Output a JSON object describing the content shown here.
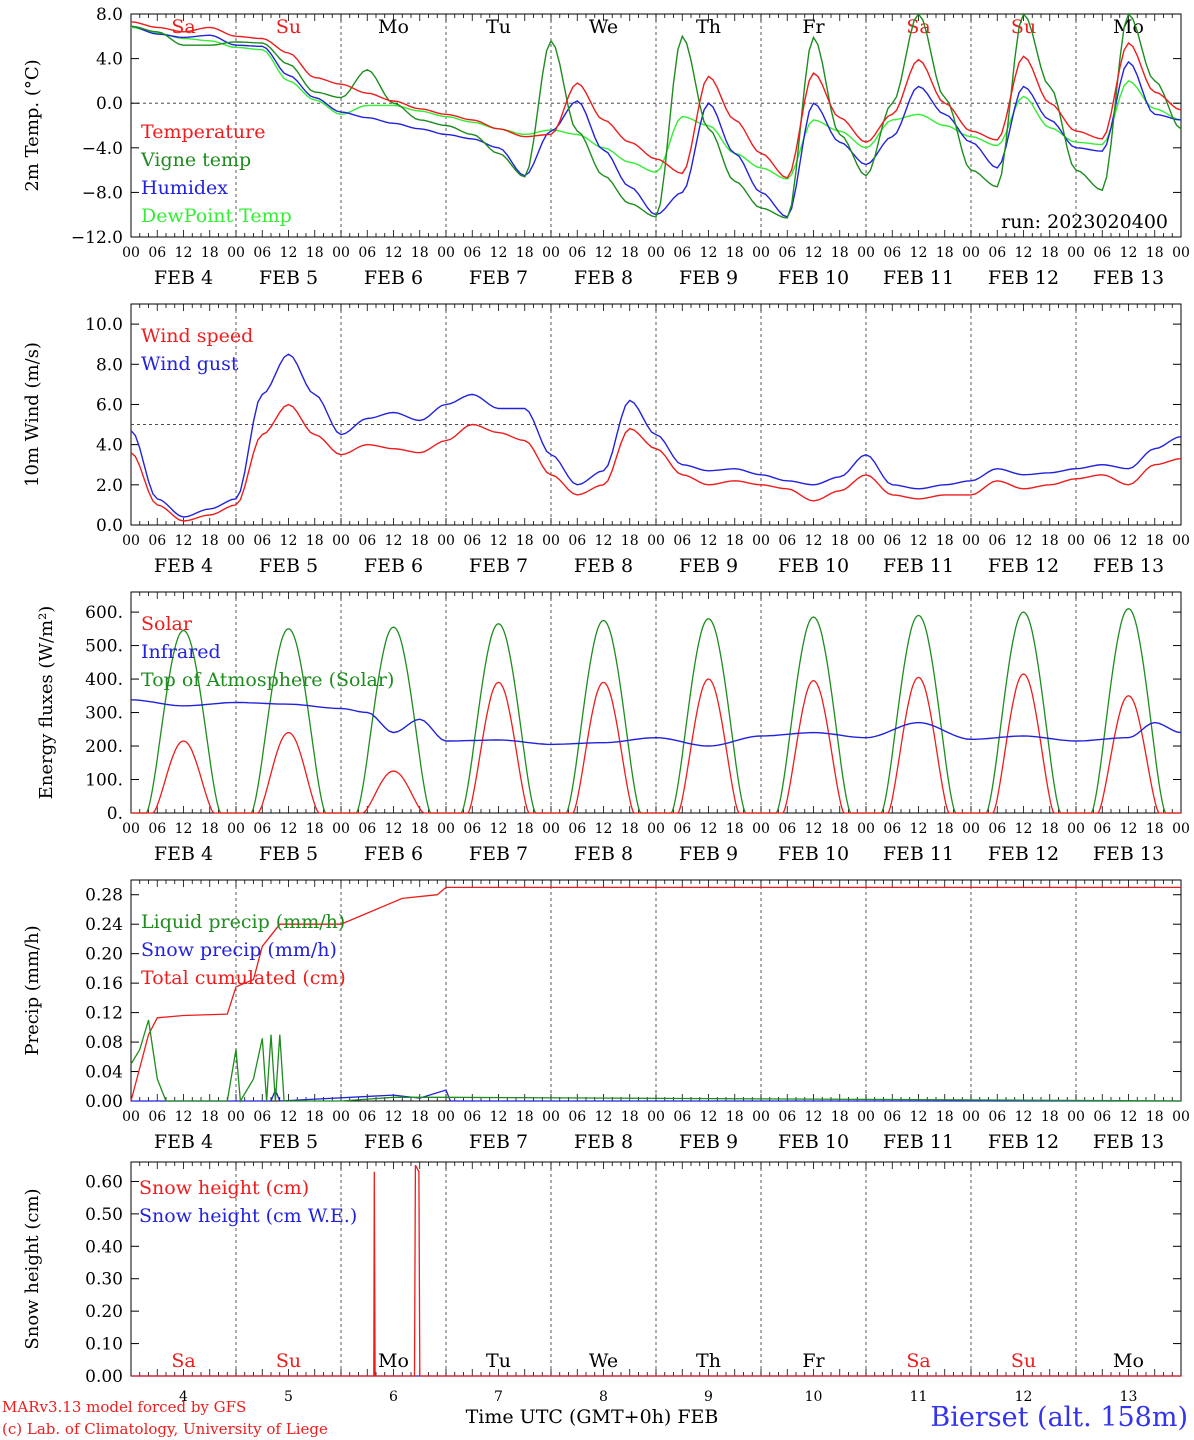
{
  "chart_data": [
    {
      "type": "line",
      "ylabel": "2m Temp. (°C)",
      "ylim": [
        -12,
        8
      ],
      "yticks": [
        "8.0",
        "4.0",
        "0.0",
        "−4.0",
        "−8.0",
        "−12.0"
      ],
      "yticks_val": [
        8,
        4,
        0,
        -4,
        -8,
        -12
      ],
      "grid": "vertical dashed at 00 UTC; dashed line at 0",
      "ref_line": 0,
      "annotation": "run: 2023020400",
      "x_hours": [
        0,
        6,
        12,
        18,
        24,
        30,
        36,
        42,
        48,
        54,
        60,
        66,
        72,
        78,
        84,
        90,
        96,
        102,
        108,
        114,
        120,
        126,
        132,
        138,
        144,
        150,
        156,
        162,
        168,
        174,
        180,
        186,
        192,
        198,
        204,
        210,
        216,
        222,
        228,
        234,
        240
      ],
      "series": [
        {
          "name": "Temperature",
          "color": "#ee1c1c",
          "values": [
            7.3,
            6.8,
            6.4,
            6.8,
            6.0,
            5.8,
            4.5,
            2.3,
            1.7,
            0.9,
            0.2,
            -0.5,
            -1.0,
            -1.5,
            -2.3,
            -3.0,
            -2.8,
            1.8,
            -1.5,
            -3.5,
            -5.0,
            -6.3,
            2.4,
            -1.5,
            -4.5,
            -6.7,
            2.7,
            -1.3,
            -3.5,
            -1.0,
            3.9,
            0.0,
            -2.5,
            -3.3,
            4.2,
            0.0,
            -2.5,
            -3.2,
            5.4,
            1.0,
            -0.6
          ]
        },
        {
          "name": "Vigne temp",
          "color": "#1e8c1e",
          "values": [
            6.9,
            6.4,
            5.2,
            5.2,
            5.5,
            5.4,
            3.5,
            1.0,
            0.5,
            3.0,
            0.0,
            -1.5,
            -2.0,
            -2.8,
            -4.5,
            -6.6,
            5.6,
            -2.5,
            -6.5,
            -9.0,
            -10.2,
            6.0,
            -2.3,
            -7.0,
            -9.4,
            -10.3,
            5.9,
            -2.8,
            -6.5,
            0.0,
            8.0,
            0.5,
            -6.0,
            -7.5,
            8.0,
            1.5,
            -6.0,
            -7.8,
            8.0,
            2.0,
            -2.3
          ]
        },
        {
          "name": "Humidex",
          "color": "#2222dd",
          "values": [
            6.9,
            6.2,
            5.9,
            6.1,
            5.2,
            5.1,
            2.5,
            0.5,
            -0.8,
            -1.3,
            -1.8,
            -2.3,
            -2.8,
            -3.2,
            -4.0,
            -6.5,
            -2.5,
            0.2,
            -4.2,
            -7.5,
            -10.0,
            -8.0,
            0.0,
            -4.5,
            -8.0,
            -10.2,
            0.0,
            -3.5,
            -5.5,
            -3.0,
            1.5,
            -1.0,
            -3.5,
            -5.8,
            1.5,
            -1.5,
            -4.0,
            -4.3,
            3.7,
            -1.0,
            -1.5
          ]
        },
        {
          "name": "DewPoint Temp",
          "color": "#33ee33",
          "values": [
            6.8,
            6.3,
            5.8,
            5.6,
            5.0,
            4.8,
            2.0,
            0.3,
            -1.0,
            -0.2,
            -0.2,
            -0.7,
            -1.2,
            -1.7,
            -2.3,
            -2.8,
            -2.4,
            -2.8,
            -4.0,
            -5.3,
            -6.2,
            -1.2,
            -2.0,
            -4.5,
            -5.8,
            -6.8,
            -1.5,
            -2.5,
            -4.0,
            -1.5,
            -1.0,
            -2.0,
            -3.0,
            -3.8,
            0.6,
            -2.2,
            -3.5,
            -3.7,
            2.0,
            -0.5,
            -1.5
          ]
        }
      ]
    },
    {
      "type": "line",
      "ylabel": "10m Wind (m/s)",
      "ylim": [
        0,
        11
      ],
      "yticks": [
        "0.0",
        "2.0",
        "4.0",
        "6.0",
        "8.0",
        "10.0"
      ],
      "yticks_val": [
        0,
        2,
        4,
        6,
        8,
        10
      ],
      "grid": "vertical dashed at 00 UTC; dashed line at 5",
      "ref_line": 5,
      "x_hours": [
        0,
        6,
        12,
        18,
        24,
        30,
        36,
        42,
        48,
        54,
        60,
        66,
        72,
        78,
        84,
        90,
        96,
        102,
        108,
        114,
        120,
        126,
        132,
        138,
        144,
        150,
        156,
        162,
        168,
        174,
        180,
        186,
        192,
        198,
        204,
        210,
        216,
        222,
        228,
        234,
        240
      ],
      "series": [
        {
          "name": "Wind speed",
          "color": "#ee1c1c",
          "values": [
            3.6,
            1.0,
            0.2,
            0.5,
            1.0,
            4.5,
            6.0,
            4.5,
            3.5,
            4.0,
            3.8,
            3.6,
            4.2,
            5.0,
            4.6,
            4.2,
            2.5,
            1.5,
            2.0,
            4.8,
            3.8,
            2.5,
            2.0,
            2.2,
            2.0,
            1.8,
            1.2,
            1.7,
            2.5,
            1.5,
            1.3,
            1.5,
            1.5,
            2.2,
            1.8,
            2.0,
            2.3,
            2.5,
            2.0,
            3.0,
            3.3
          ]
        },
        {
          "name": "Wind gust",
          "color": "#2222dd",
          "values": [
            4.7,
            1.3,
            0.4,
            0.8,
            1.3,
            6.5,
            8.5,
            6.5,
            4.5,
            5.3,
            5.6,
            5.2,
            6.0,
            6.5,
            5.8,
            5.8,
            3.5,
            2.0,
            2.7,
            6.2,
            4.5,
            3.0,
            2.7,
            2.8,
            2.5,
            2.2,
            2.0,
            2.4,
            3.5,
            2.0,
            1.8,
            2.0,
            2.2,
            2.8,
            2.5,
            2.6,
            2.8,
            3.0,
            2.8,
            3.8,
            4.4
          ]
        }
      ]
    },
    {
      "type": "line",
      "ylabel": "Energy fluxes (W/m²)",
      "ylim": [
        0,
        660
      ],
      "yticks": [
        "0.",
        "100.",
        "200.",
        "300.",
        "400.",
        "500.",
        "600."
      ],
      "yticks_val": [
        0,
        100,
        200,
        300,
        400,
        500,
        600
      ],
      "grid": "vertical dashed at 00 UTC",
      "toa_peaks": [
        545,
        550,
        555,
        565,
        575,
        580,
        585,
        590,
        600,
        610
      ],
      "solar_peaks": [
        215,
        240,
        125,
        390,
        390,
        400,
        395,
        405,
        415,
        350
      ],
      "x_hours": [
        0,
        12,
        24,
        36,
        48,
        54,
        60,
        66,
        72,
        84,
        96,
        108,
        120,
        132,
        144,
        156,
        168,
        180,
        192,
        204,
        216,
        228,
        234,
        240
      ],
      "series": [
        {
          "name": "Solar",
          "color": "#ee1c1c"
        },
        {
          "name": "Infrared",
          "color": "#2222dd",
          "values": [
            338,
            320,
            330,
            325,
            312,
            300,
            240,
            280,
            215,
            218,
            205,
            210,
            225,
            200,
            230,
            240,
            225,
            270,
            220,
            230,
            215,
            225,
            270,
            240
          ]
        },
        {
          "name": "Top of Atmosphere (Solar)",
          "color": "#1e8c1e"
        }
      ]
    },
    {
      "type": "line",
      "ylabel": "Precip (mm/h)",
      "ylim": [
        0,
        0.3
      ],
      "yticks": [
        "0.00",
        "0.04",
        "0.08",
        "0.12",
        "0.16",
        "0.20",
        "0.24",
        "0.28"
      ],
      "yticks_val": [
        0,
        0.04,
        0.08,
        0.12,
        0.16,
        0.2,
        0.24,
        0.28
      ],
      "grid": "vertical dashed at 00 UTC",
      "series": [
        {
          "name": "Liquid precip (mm/h)",
          "color": "#1e8c1e",
          "points": [
            [
              0,
              0.05
            ],
            [
              2,
              0.07
            ],
            [
              4,
              0.11
            ],
            [
              6,
              0.03
            ],
            [
              8,
              0.0
            ],
            [
              22,
              0.0
            ],
            [
              24,
              0.07
            ],
            [
              25,
              0.0
            ],
            [
              28,
              0.03
            ],
            [
              30,
              0.085
            ],
            [
              31,
              0.0
            ],
            [
              32,
              0.09
            ],
            [
              33,
              0.0
            ],
            [
              34,
              0.09
            ],
            [
              35,
              0.0
            ],
            [
              48,
              0.0
            ],
            [
              60,
              0.005
            ],
            [
              72,
              0.005
            ],
            [
              240,
              0.0
            ]
          ]
        },
        {
          "name": "Snow precip (mm/h)",
          "color": "#2222dd",
          "points": [
            [
              0,
              0.0
            ],
            [
              32,
              0.0
            ],
            [
              33,
              0.015
            ],
            [
              34,
              0.0
            ],
            [
              60,
              0.008
            ],
            [
              66,
              0.004
            ],
            [
              72,
              0.015
            ],
            [
              73,
              0.0
            ],
            [
              240,
              0.0
            ]
          ]
        },
        {
          "name": "Total cumulated (cm)",
          "color": "#ee1c1c",
          "points": [
            [
              0,
              0.0
            ],
            [
              4,
              0.09
            ],
            [
              6,
              0.113
            ],
            [
              12,
              0.116
            ],
            [
              22,
              0.118
            ],
            [
              24,
              0.155
            ],
            [
              28,
              0.165
            ],
            [
              30,
              0.21
            ],
            [
              34,
              0.24
            ],
            [
              48,
              0.24
            ],
            [
              54,
              0.255
            ],
            [
              62,
              0.275
            ],
            [
              70,
              0.28
            ],
            [
              72,
              0.29
            ],
            [
              240,
              0.29
            ]
          ]
        }
      ]
    },
    {
      "type": "line",
      "ylabel": "Snow height (cm)",
      "ylim": [
        0,
        0.66
      ],
      "yticks": [
        "0.00",
        "0.10",
        "0.20",
        "0.30",
        "0.40",
        "0.50",
        "0.60"
      ],
      "yticks_val": [
        0,
        0.1,
        0.2,
        0.3,
        0.4,
        0.5,
        0.6
      ],
      "grid": "vertical dashed at 00 UTC",
      "series": [
        {
          "name": "Snow height (cm)",
          "color": "#ee1c1c",
          "points": [
            [
              0,
              0
            ],
            [
              55.5,
              0
            ],
            [
              55.6,
              0.63
            ],
            [
              55.8,
              0
            ],
            [
              64.8,
              0
            ],
            [
              65.0,
              0.65
            ],
            [
              65.8,
              0.63
            ],
            [
              66.0,
              0
            ],
            [
              240,
              0
            ]
          ]
        },
        {
          "name": "Snow height (cm W.E.)",
          "color": "#2222dd",
          "points": [
            [
              0,
              0
            ],
            [
              240,
              0
            ]
          ]
        }
      ]
    }
  ],
  "x_axis": {
    "hour_labels": [
      "00",
      "06",
      "12",
      "18"
    ],
    "end_label": "00",
    "date_labels": [
      "FEB  4",
      "FEB  5",
      "FEB  6",
      "FEB  7",
      "FEB  8",
      "FEB  9",
      "FEB 10",
      "FEB 11",
      "FEB 12",
      "FEB 13"
    ],
    "day_numbers": [
      "4",
      "5",
      "6",
      "7",
      "8",
      "9",
      "10",
      "11",
      "12",
      "13"
    ],
    "xlabel": "Time UTC (GMT+0h) FEB"
  },
  "weekdays": [
    {
      "label": "Sa",
      "color": "#ee1c1c"
    },
    {
      "label": "Su",
      "color": "#ee1c1c"
    },
    {
      "label": "Mo",
      "color": "#000000"
    },
    {
      "label": "Tu",
      "color": "#000000"
    },
    {
      "label": "We",
      "color": "#000000"
    },
    {
      "label": "Th",
      "color": "#000000"
    },
    {
      "label": "Fr",
      "color": "#000000"
    },
    {
      "label": "Sa",
      "color": "#ee1c1c"
    },
    {
      "label": "Su",
      "color": "#ee1c1c"
    },
    {
      "label": "Mo",
      "color": "#000000"
    }
  ],
  "footer": {
    "credit_line1": "MARv3.13 model forced by GFS",
    "credit_line2": "(c) Lab. of Climatology, University of Liege",
    "station": "Bierset (alt. 158m)",
    "credit_color": "#ee1c1c",
    "station_color": "#3333ee"
  }
}
